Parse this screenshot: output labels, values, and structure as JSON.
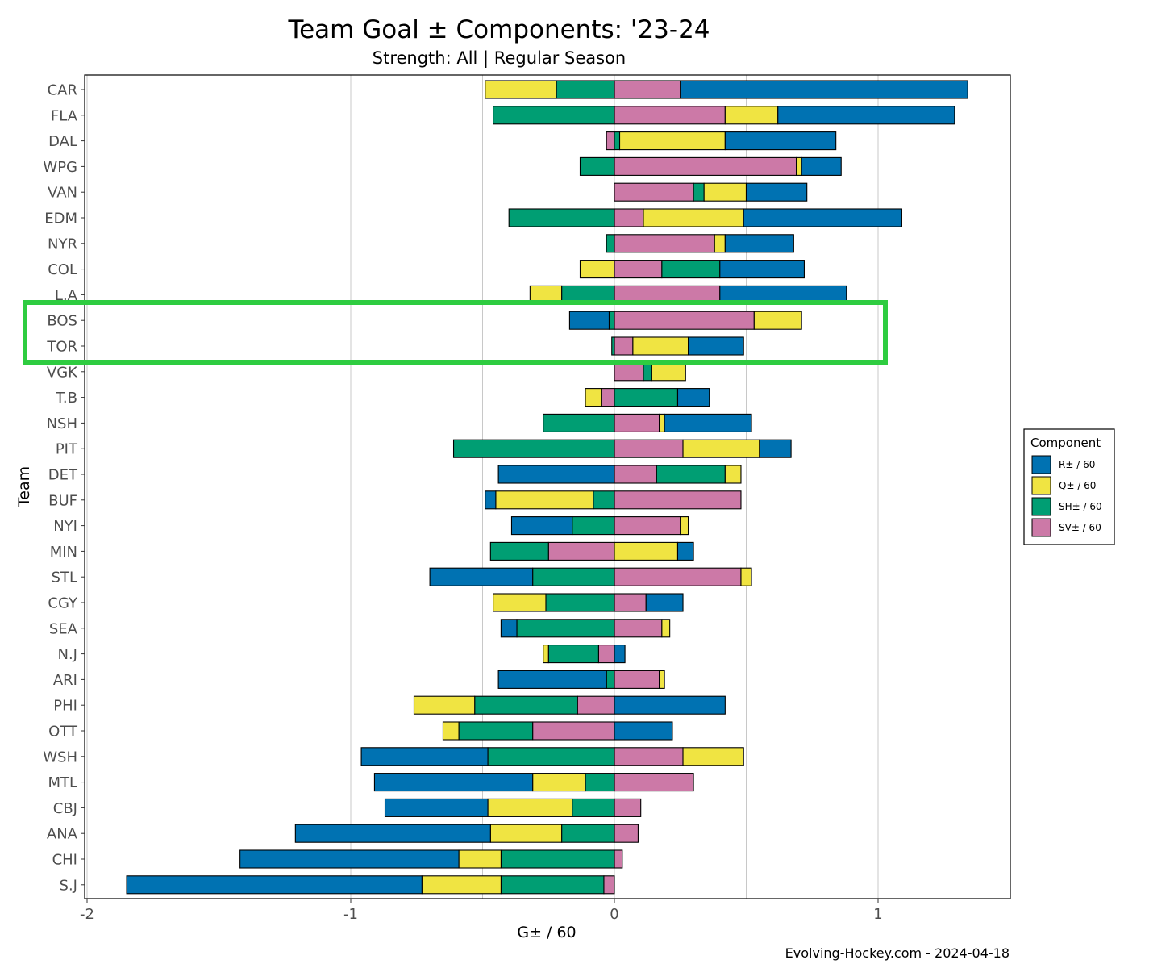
{
  "chart_data": {
    "type": "bar",
    "orientation": "horizontal",
    "stacked": "diverging",
    "title": "Team Goal ± Components: '23-24",
    "subtitle": "Strength: All  |  Regular Season",
    "xlabel": "G± / 60",
    "ylabel": "Team",
    "xlim": [
      -2,
      1.5
    ],
    "xticks": [
      -2,
      -1,
      0,
      1
    ],
    "xtick_labels": [
      "-2",
      "-1",
      "0",
      "1"
    ],
    "grid": "vertical",
    "caption": "Evolving-Hockey.com - 2024-04-18",
    "legend": {
      "title": "Component",
      "position": "right",
      "items": [
        {
          "key": "R",
          "label": "R± / 60",
          "color": "#0072b2"
        },
        {
          "key": "Q",
          "label": "Q± / 60",
          "color": "#f0e442"
        },
        {
          "key": "SH",
          "label": "SH± / 60",
          "color": "#009e73"
        },
        {
          "key": "SV",
          "label": "SV± / 60",
          "color": "#cc79a7"
        }
      ]
    },
    "categories": [
      "CAR",
      "FLA",
      "DAL",
      "WPG",
      "VAN",
      "EDM",
      "NYR",
      "COL",
      "L.A",
      "BOS",
      "TOR",
      "VGK",
      "T.B",
      "NSH",
      "PIT",
      "DET",
      "BUF",
      "NYI",
      "MIN",
      "STL",
      "CGY",
      "SEA",
      "N.J",
      "ARI",
      "PHI",
      "OTT",
      "WSH",
      "MTL",
      "CBJ",
      "ANA",
      "CHI",
      "S.J"
    ],
    "series": [
      {
        "name": "R± / 60",
        "key": "R",
        "values": [
          1.09,
          0.67,
          0.42,
          0.15,
          0.23,
          0.6,
          0.26,
          0.32,
          0.48,
          -0.15,
          0.21,
          0,
          0.12,
          0.33,
          0.12,
          -0.44,
          -0.04,
          -0.23,
          0.06,
          -0.39,
          0.14,
          -0.06,
          0.04,
          -0.41,
          0.42,
          0.22,
          -0.48,
          -0.6,
          -0.39,
          -0.74,
          -0.83,
          -1.12
        ]
      },
      {
        "name": "Q± / 60",
        "key": "Q",
        "values": [
          -0.27,
          0.2,
          0.4,
          0.02,
          0.16,
          0.38,
          0.04,
          -0.13,
          -0.12,
          0.18,
          0.21,
          0.13,
          -0.06,
          0.02,
          0.29,
          0.06,
          -0.37,
          0.03,
          0.24,
          0.04,
          -0.2,
          0.03,
          -0.02,
          0.02,
          -0.23,
          -0.06,
          0.23,
          -0.2,
          -0.32,
          -0.27,
          -0.16,
          -0.3
        ]
      },
      {
        "name": "SH± / 60",
        "key": "SH",
        "values": [
          -0.22,
          -0.46,
          0.02,
          -0.13,
          0.04,
          -0.4,
          -0.03,
          0.22,
          -0.2,
          -0.02,
          -0.01,
          0.03,
          0.24,
          -0.27,
          -0.61,
          0.26,
          -0.08,
          -0.16,
          -0.22,
          -0.31,
          -0.26,
          -0.37,
          -0.19,
          -0.03,
          -0.39,
          -0.28,
          -0.48,
          -0.11,
          -0.16,
          -0.2,
          -0.43,
          -0.39
        ]
      },
      {
        "name": "SV± / 60",
        "key": "SV",
        "values": [
          0.25,
          0.42,
          -0.03,
          0.69,
          0.3,
          0.11,
          0.38,
          0.18,
          0.4,
          0.53,
          0.07,
          0.11,
          -0.05,
          0.17,
          0.26,
          0.16,
          0.48,
          0.25,
          -0.25,
          0.48,
          0.12,
          0.18,
          -0.06,
          0.17,
          -0.14,
          -0.31,
          0.26,
          0.3,
          0.1,
          0.09,
          0.03,
          -0.04
        ]
      }
    ]
  }
}
